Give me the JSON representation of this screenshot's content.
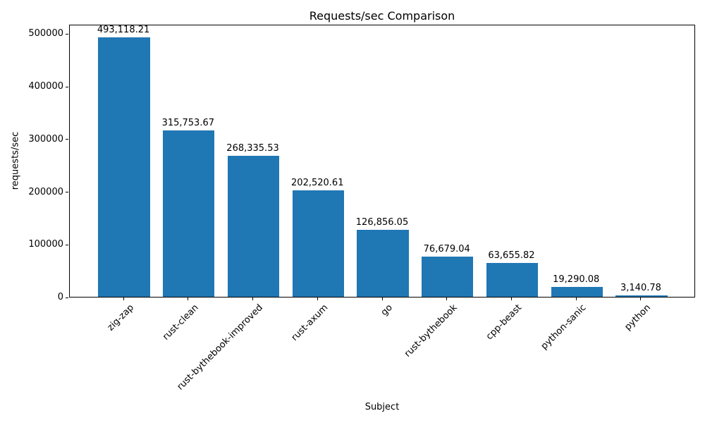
{
  "chart_data": {
    "type": "bar",
    "title": "Requests/sec Comparison",
    "xlabel": "Subject",
    "ylabel": "requests/sec",
    "categories": [
      "zig-zap",
      "rust-clean",
      "rust-bythebook-improved",
      "rust-axum",
      "go",
      "rust-bythebook",
      "cpp-beast",
      "python-sanic",
      "python"
    ],
    "values": [
      493118.21,
      315753.67,
      268335.53,
      202520.61,
      126856.05,
      76679.04,
      63655.82,
      19290.08,
      3140.78
    ],
    "bar_labels": [
      "493,118.21",
      "315,753.67",
      "268,335.53",
      "202,520.61",
      "126,856.05",
      "76,679.04",
      "63,655.82",
      "19,290.08",
      "3,140.78"
    ],
    "yticks": [
      0,
      100000,
      200000,
      300000,
      400000,
      500000
    ],
    "ytick_labels": [
      "0",
      "100000",
      "200000",
      "300000",
      "400000",
      "500000"
    ],
    "ylim": [
      0,
      518000
    ],
    "bar_color": "#1f77b4",
    "grid": false,
    "legend": null,
    "x_tick_rotation_deg": 45
  }
}
